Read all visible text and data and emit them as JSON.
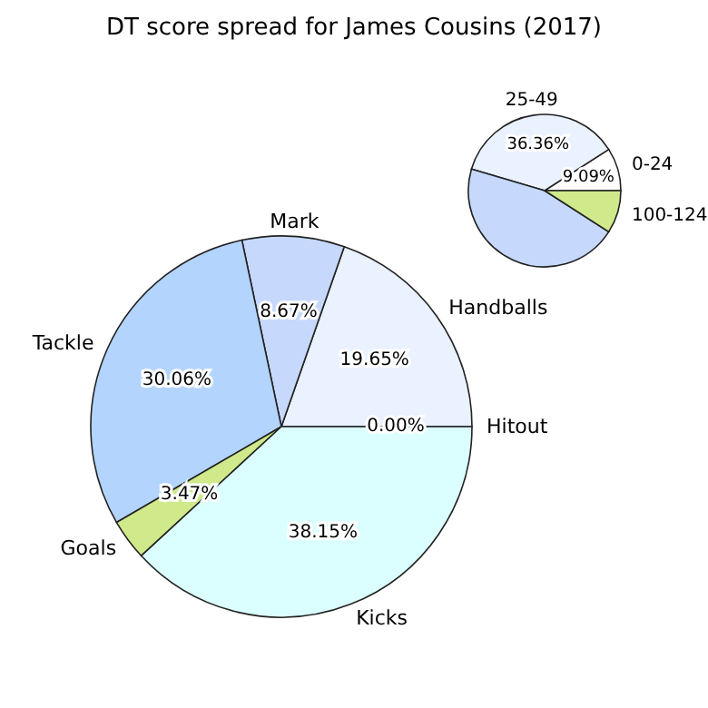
{
  "chart_data": [
    {
      "type": "pie",
      "title": "DT score spread for James Cousins (2017)",
      "categories": [
        "0-24",
        "25-49",
        null,
        "100-124"
      ],
      "values": [
        9.09,
        36.36,
        45.45,
        9.09
      ],
      "colors": [
        "#ffffff",
        "#eaf1ff",
        "#c6d9fd",
        "#cfe98b"
      ],
      "value_labels": [
        "9.09%",
        "36.36%",
        null,
        null
      ],
      "legend": false
    },
    {
      "type": "pie",
      "categories": [
        "Hitout",
        "Handballs",
        "Mark",
        "Tackle",
        "Goals",
        "Kicks"
      ],
      "values": [
        0.0,
        19.65,
        8.67,
        30.06,
        3.47,
        38.15
      ],
      "colors": [
        "#ffffff",
        "#eaf1ff",
        "#c6d9fd",
        "#b3d4fc",
        "#cfe98b",
        "#dbffff"
      ],
      "value_labels": [
        "0.00%",
        "19.65%",
        "8.67%",
        "30.06%",
        "3.47%",
        "38.15%"
      ],
      "legend": false
    }
  ]
}
